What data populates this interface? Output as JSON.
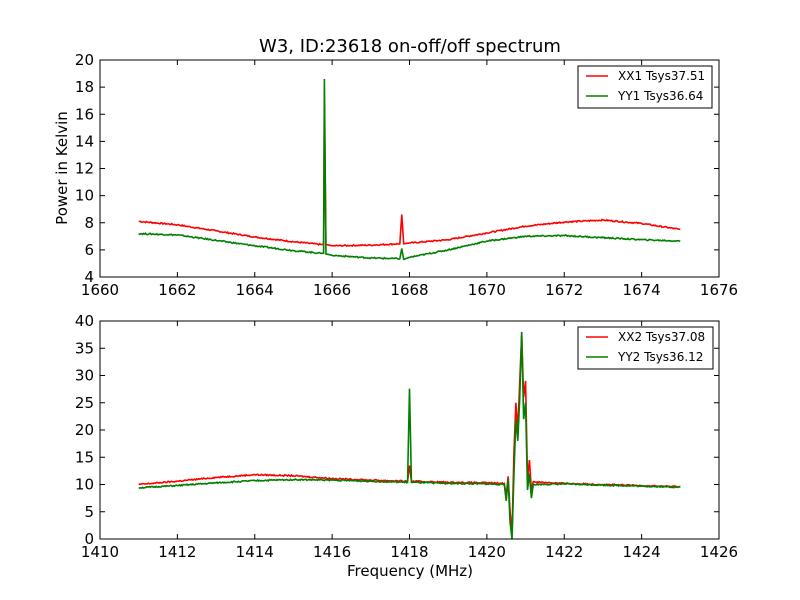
{
  "chart_data": [
    {
      "type": "line",
      "title": "W3, ID:23618 on-off/off spectrum",
      "xlabel": "",
      "ylabel": "Power in Kelvin",
      "xlim": [
        1660,
        1676
      ],
      "ylim": [
        4,
        20
      ],
      "xticks": [
        1660,
        1662,
        1664,
        1666,
        1668,
        1670,
        1672,
        1674,
        1676
      ],
      "yticks": [
        4,
        6,
        8,
        10,
        12,
        14,
        16,
        18,
        20
      ],
      "legend_position": "top-right",
      "series": [
        {
          "name": "XX1 Tsys37.51",
          "color": "#ff0000",
          "points": [
            [
              1661,
              8.1
            ],
            [
              1662,
              7.85
            ],
            [
              1663,
              7.4
            ],
            [
              1664,
              6.95
            ],
            [
              1665,
              6.6
            ],
            [
              1665.7,
              6.4
            ],
            [
              1665.78,
              6.4
            ],
            [
              1665.8,
              16.8
            ],
            [
              1665.84,
              6.4
            ],
            [
              1666,
              6.3
            ],
            [
              1667,
              6.35
            ],
            [
              1667.75,
              6.45
            ],
            [
              1667.8,
              8.6
            ],
            [
              1667.85,
              6.45
            ],
            [
              1668,
              6.5
            ],
            [
              1669,
              6.75
            ],
            [
              1670,
              7.25
            ],
            [
              1671,
              7.75
            ],
            [
              1672,
              8.05
            ],
            [
              1673,
              8.2
            ],
            [
              1674,
              7.95
            ],
            [
              1675,
              7.5
            ]
          ]
        },
        {
          "name": "YY1 Tsys36.64",
          "color": "#008000",
          "points": [
            [
              1661,
              7.2
            ],
            [
              1662,
              7.1
            ],
            [
              1663,
              6.7
            ],
            [
              1664,
              6.3
            ],
            [
              1665,
              5.95
            ],
            [
              1665.7,
              5.75
            ],
            [
              1665.78,
              5.75
            ],
            [
              1665.8,
              18.6
            ],
            [
              1665.84,
              5.7
            ],
            [
              1666,
              5.6
            ],
            [
              1667,
              5.4
            ],
            [
              1667.75,
              5.35
            ],
            [
              1667.8,
              6.1
            ],
            [
              1667.85,
              5.3
            ],
            [
              1668,
              5.45
            ],
            [
              1669,
              6.0
            ],
            [
              1670,
              6.65
            ],
            [
              1671,
              7.0
            ],
            [
              1672,
              7.05
            ],
            [
              1673,
              6.9
            ],
            [
              1674,
              6.75
            ],
            [
              1675,
              6.65
            ]
          ]
        }
      ]
    },
    {
      "type": "line",
      "title": "",
      "xlabel": "Frequency (MHz)",
      "ylabel": "",
      "xlim": [
        1410,
        1426
      ],
      "ylim": [
        0,
        40
      ],
      "xticks": [
        1410,
        1412,
        1414,
        1416,
        1418,
        1420,
        1422,
        1424,
        1426
      ],
      "yticks": [
        0,
        5,
        10,
        15,
        20,
        25,
        30,
        35,
        40
      ],
      "legend_position": "top-right",
      "series": [
        {
          "name": "XX2 Tsys37.08",
          "color": "#ff0000",
          "points": [
            [
              1411,
              10.0
            ],
            [
              1412,
              10.6
            ],
            [
              1413,
              11.3
            ],
            [
              1414,
              11.8
            ],
            [
              1415,
              11.6
            ],
            [
              1416,
              11.1
            ],
            [
              1417,
              10.8
            ],
            [
              1417.95,
              10.6
            ],
            [
              1418,
              13.5
            ],
            [
              1418.05,
              10.6
            ],
            [
              1419,
              10.4
            ],
            [
              1420,
              10.3
            ],
            [
              1420.45,
              10.2
            ],
            [
              1420.5,
              8.0
            ],
            [
              1420.55,
              11.5
            ],
            [
              1420.6,
              5.0
            ],
            [
              1420.65,
              1.0
            ],
            [
              1420.7,
              16.0
            ],
            [
              1420.75,
              25.0
            ],
            [
              1420.8,
              20.0
            ],
            [
              1420.85,
              29.0
            ],
            [
              1420.9,
              37.5
            ],
            [
              1420.95,
              26.0
            ],
            [
              1421.0,
              29.0
            ],
            [
              1421.05,
              11.0
            ],
            [
              1421.1,
              14.5
            ],
            [
              1421.15,
              9.0
            ],
            [
              1421.2,
              10.5
            ],
            [
              1422,
              10.2
            ],
            [
              1423,
              10.0
            ],
            [
              1424,
              9.8
            ],
            [
              1425,
              9.6
            ]
          ]
        },
        {
          "name": "YY2 Tsys36.12",
          "color": "#008000",
          "points": [
            [
              1411,
              9.4
            ],
            [
              1412,
              9.8
            ],
            [
              1413,
              10.3
            ],
            [
              1414,
              10.7
            ],
            [
              1415,
              10.9
            ],
            [
              1416,
              10.8
            ],
            [
              1417,
              10.6
            ],
            [
              1417.95,
              10.4
            ],
            [
              1418,
              27.6
            ],
            [
              1418.05,
              10.4
            ],
            [
              1419,
              10.2
            ],
            [
              1420,
              10.1
            ],
            [
              1420.45,
              10.0
            ],
            [
              1420.5,
              7.0
            ],
            [
              1420.55,
              11.0
            ],
            [
              1420.6,
              3.0
            ],
            [
              1420.65,
              0.0
            ],
            [
              1420.7,
              12.0
            ],
            [
              1420.75,
              22.0
            ],
            [
              1420.8,
              18.0
            ],
            [
              1420.85,
              26.0
            ],
            [
              1420.9,
              38.0
            ],
            [
              1420.95,
              22.0
            ],
            [
              1421.0,
              25.0
            ],
            [
              1421.05,
              9.0
            ],
            [
              1421.1,
              12.0
            ],
            [
              1421.15,
              7.5
            ],
            [
              1421.2,
              10.0
            ],
            [
              1422,
              10.1
            ],
            [
              1423,
              9.9
            ],
            [
              1424,
              9.7
            ],
            [
              1425,
              9.5
            ]
          ]
        }
      ]
    }
  ]
}
